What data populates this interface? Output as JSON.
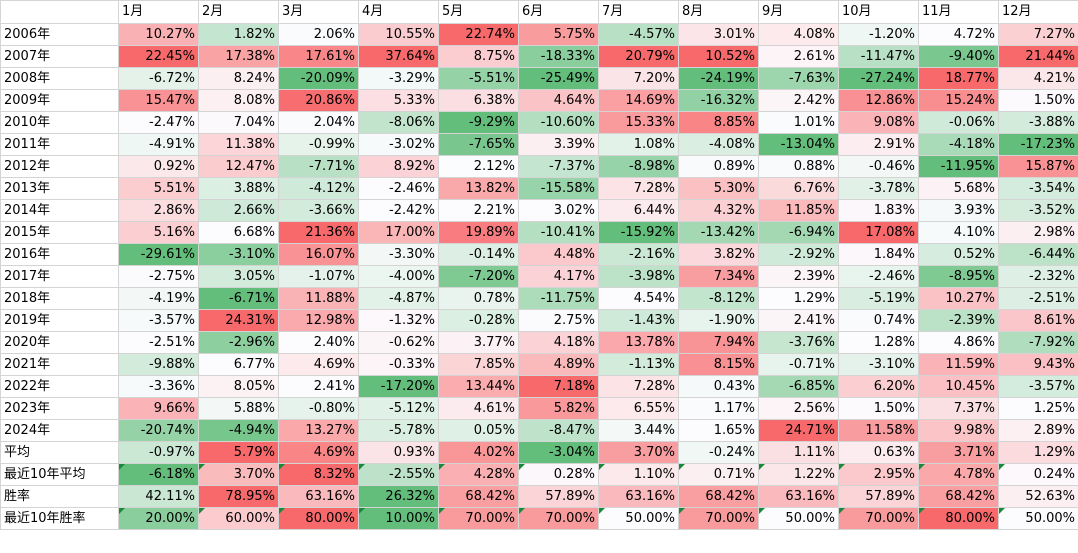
{
  "months": [
    "1月",
    "2月",
    "3月",
    "4月",
    "5月",
    "6月",
    "7月",
    "8月",
    "9月",
    "10月",
    "11月",
    "12月"
  ],
  "rows": [
    {
      "label": "2006年",
      "values": [
        "10.27%",
        "1.82%",
        "2.06%",
        "10.55%",
        "22.74%",
        "5.75%",
        "-4.57%",
        "3.01%",
        "4.08%",
        "-1.20%",
        "4.72%",
        "7.27%"
      ]
    },
    {
      "label": "2007年",
      "values": [
        "22.45%",
        "17.38%",
        "17.61%",
        "37.64%",
        "8.75%",
        "-18.33%",
        "20.79%",
        "10.52%",
        "2.61%",
        "-11.47%",
        "-9.40%",
        "21.44%"
      ]
    },
    {
      "label": "2008年",
      "values": [
        "-6.72%",
        "8.24%",
        "-20.09%",
        "-3.29%",
        "-5.51%",
        "-25.49%",
        "7.20%",
        "-24.19%",
        "-7.63%",
        "-27.24%",
        "18.77%",
        "4.21%"
      ]
    },
    {
      "label": "2009年",
      "values": [
        "15.47%",
        "8.08%",
        "20.86%",
        "5.33%",
        "6.38%",
        "4.64%",
        "14.69%",
        "-16.32%",
        "2.42%",
        "12.86%",
        "15.24%",
        "1.50%"
      ]
    },
    {
      "label": "2010年",
      "values": [
        "-2.47%",
        "7.04%",
        "2.04%",
        "-8.06%",
        "-9.29%",
        "-10.60%",
        "15.33%",
        "8.85%",
        "1.01%",
        "9.08%",
        "-0.06%",
        "-3.88%"
      ]
    },
    {
      "label": "2011年",
      "values": [
        "-4.91%",
        "11.38%",
        "-0.99%",
        "-3.02%",
        "-7.65%",
        "3.39%",
        "1.08%",
        "-4.08%",
        "-13.04%",
        "2.91%",
        "-4.18%",
        "-17.23%"
      ]
    },
    {
      "label": "2012年",
      "values": [
        "0.92%",
        "12.47%",
        "-7.71%",
        "8.92%",
        "2.12%",
        "-7.37%",
        "-8.98%",
        "0.89%",
        "0.88%",
        "-0.46%",
        "-11.95%",
        "15.87%"
      ]
    },
    {
      "label": "2013年",
      "values": [
        "5.51%",
        "3.88%",
        "-4.12%",
        "-2.46%",
        "13.82%",
        "-15.58%",
        "7.28%",
        "5.30%",
        "6.76%",
        "-3.78%",
        "5.68%",
        "-3.54%"
      ]
    },
    {
      "label": "2014年",
      "values": [
        "2.86%",
        "2.66%",
        "-3.66%",
        "-2.42%",
        "2.21%",
        "3.02%",
        "6.44%",
        "4.32%",
        "11.85%",
        "1.83%",
        "3.93%",
        "-3.52%"
      ]
    },
    {
      "label": "2015年",
      "values": [
        "5.16%",
        "6.68%",
        "21.36%",
        "17.00%",
        "19.89%",
        "-10.41%",
        "-15.92%",
        "-13.42%",
        "-6.94%",
        "17.08%",
        "4.10%",
        "2.98%"
      ]
    },
    {
      "label": "2016年",
      "values": [
        "-29.61%",
        "-3.10%",
        "16.07%",
        "-3.30%",
        "-0.14%",
        "4.48%",
        "-2.16%",
        "3.82%",
        "-2.92%",
        "1.84%",
        "0.52%",
        "-6.44%"
      ]
    },
    {
      "label": "2017年",
      "values": [
        "-2.75%",
        "3.05%",
        "-1.07%",
        "-4.00%",
        "-7.20%",
        "4.17%",
        "-3.98%",
        "7.34%",
        "2.39%",
        "-2.46%",
        "-8.95%",
        "-2.32%"
      ]
    },
    {
      "label": "2018年",
      "values": [
        "-4.19%",
        "-6.71%",
        "11.88%",
        "-4.87%",
        "0.78%",
        "-11.75%",
        "4.54%",
        "-8.12%",
        "1.29%",
        "-5.19%",
        "10.27%",
        "-2.51%"
      ]
    },
    {
      "label": "2019年",
      "values": [
        "-3.57%",
        "24.31%",
        "12.98%",
        "-1.32%",
        "-0.28%",
        "2.75%",
        "-1.43%",
        "-1.90%",
        "2.41%",
        "0.74%",
        "-2.39%",
        "8.61%"
      ]
    },
    {
      "label": "2020年",
      "values": [
        "-2.51%",
        "-2.96%",
        "2.40%",
        "-0.62%",
        "3.77%",
        "4.18%",
        "13.78%",
        "7.94%",
        "-3.76%",
        "1.28%",
        "4.86%",
        "-7.92%"
      ]
    },
    {
      "label": "2021年",
      "values": [
        "-9.88%",
        "6.77%",
        "4.69%",
        "-0.33%",
        "7.85%",
        "4.89%",
        "-1.13%",
        "8.15%",
        "-0.71%",
        "-3.10%",
        "11.59%",
        "9.43%"
      ]
    },
    {
      "label": "2022年",
      "values": [
        "-3.36%",
        "8.05%",
        "2.41%",
        "-17.20%",
        "13.44%",
        "7.18%",
        "7.28%",
        "0.43%",
        "-6.85%",
        "6.20%",
        "10.45%",
        "-3.57%"
      ]
    },
    {
      "label": "2023年",
      "values": [
        "9.66%",
        "5.88%",
        "-0.80%",
        "-5.12%",
        "4.61%",
        "5.82%",
        "6.55%",
        "1.17%",
        "2.56%",
        "1.50%",
        "7.37%",
        "1.25%"
      ]
    },
    {
      "label": "2024年",
      "values": [
        "-20.74%",
        "-4.94%",
        "13.27%",
        "-5.78%",
        "0.05%",
        "-8.47%",
        "3.44%",
        "1.65%",
        "24.71%",
        "11.58%",
        "9.98%",
        "2.89%"
      ]
    }
  ],
  "summary": [
    {
      "label": "平均",
      "values": [
        "-0.97%",
        "5.79%",
        "4.69%",
        "0.93%",
        "4.02%",
        "-3.04%",
        "3.70%",
        "-0.24%",
        "1.11%",
        "0.63%",
        "3.71%",
        "1.29%"
      ],
      "kind": "avg",
      "flagged": false
    },
    {
      "label": "最近10年平均",
      "values": [
        "-6.18%",
        "3.70%",
        "8.32%",
        "-2.55%",
        "4.28%",
        "0.28%",
        "1.10%",
        "0.71%",
        "1.22%",
        "2.95%",
        "4.78%",
        "0.24%"
      ],
      "kind": "avg",
      "flagged": true
    },
    {
      "label": "胜率",
      "values": [
        "42.11%",
        "78.95%",
        "63.16%",
        "26.32%",
        "68.42%",
        "57.89%",
        "63.16%",
        "68.42%",
        "63.16%",
        "57.89%",
        "68.42%",
        "52.63%"
      ],
      "kind": "rate",
      "flagged": false
    },
    {
      "label": "最近10年胜率",
      "values": [
        "20.00%",
        "60.00%",
        "80.00%",
        "10.00%",
        "70.00%",
        "70.00%",
        "50.00%",
        "70.00%",
        "50.00%",
        "70.00%",
        "80.00%",
        "50.00%"
      ],
      "kind": "rate",
      "flagged": true
    }
  ],
  "colors": {
    "positive": "#f8696b",
    "negative": "#63be7b",
    "neutral": "#fcfcff",
    "error_indicator": "#1a8a3a"
  }
}
